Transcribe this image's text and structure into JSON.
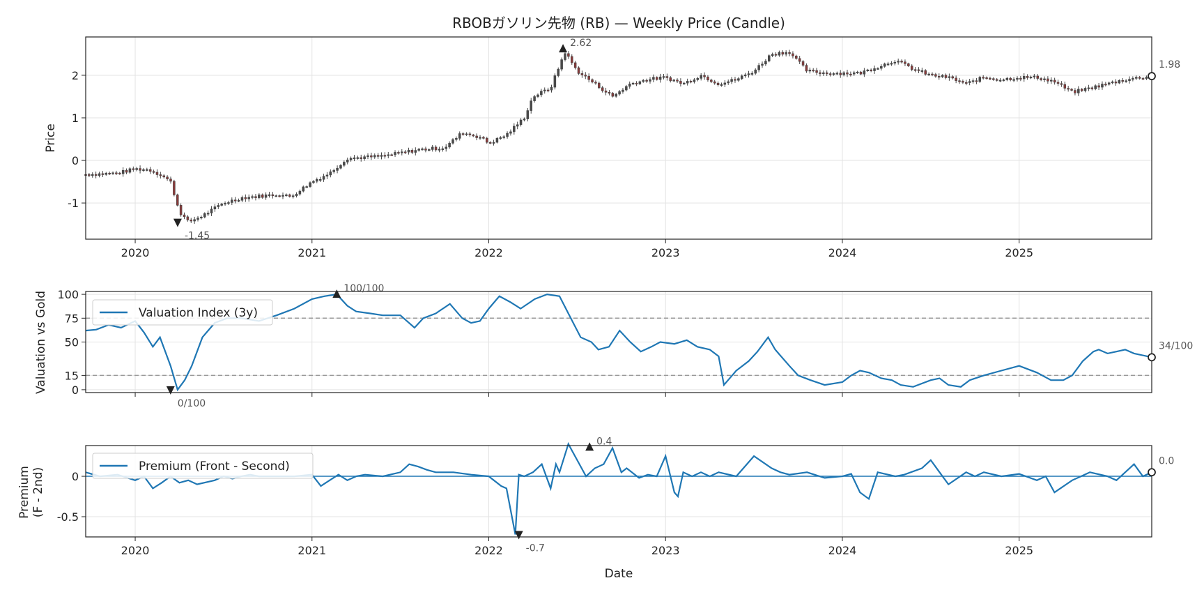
{
  "chart_data": [
    {
      "type": "candlestick",
      "title": "RBOBガソリン先物 (RB) — Weekly Price (Candle)",
      "ylabel": "Price",
      "xlabel": "",
      "xlim": [
        2019.72,
        2025.75
      ],
      "ylim": [
        -1.85,
        2.9
      ],
      "yticks": [
        -1,
        0,
        1,
        2
      ],
      "xticks": [
        "2020",
        "2021",
        "2022",
        "2023",
        "2024",
        "2025"
      ],
      "grid": true,
      "anchors": [
        [
          2019.72,
          -0.33
        ],
        [
          2019.9,
          -0.3
        ],
        [
          2020.0,
          -0.2
        ],
        [
          2020.08,
          -0.22
        ],
        [
          2020.15,
          -0.35
        ],
        [
          2020.2,
          -0.5
        ],
        [
          2020.25,
          -1.2
        ],
        [
          2020.3,
          -1.45
        ],
        [
          2020.38,
          -1.3
        ],
        [
          2020.5,
          -1.0
        ],
        [
          2020.6,
          -0.88
        ],
        [
          2020.8,
          -0.8
        ],
        [
          2020.88,
          -0.85
        ],
        [
          2021.0,
          -0.5
        ],
        [
          2021.1,
          -0.3
        ],
        [
          2021.2,
          0.05
        ],
        [
          2021.4,
          0.1
        ],
        [
          2021.6,
          0.25
        ],
        [
          2021.75,
          0.3
        ],
        [
          2021.85,
          0.65
        ],
        [
          2021.95,
          0.55
        ],
        [
          2022.0,
          0.4
        ],
        [
          2022.1,
          0.6
        ],
        [
          2022.2,
          1.0
        ],
        [
          2022.25,
          1.5
        ],
        [
          2022.35,
          1.7
        ],
        [
          2022.43,
          2.55
        ],
        [
          2022.5,
          2.1
        ],
        [
          2022.6,
          1.8
        ],
        [
          2022.7,
          1.5
        ],
        [
          2022.8,
          1.8
        ],
        [
          2022.9,
          1.9
        ],
        [
          2023.0,
          1.95
        ],
        [
          2023.1,
          1.8
        ],
        [
          2023.2,
          2.0
        ],
        [
          2023.3,
          1.8
        ],
        [
          2023.4,
          1.9
        ],
        [
          2023.5,
          2.1
        ],
        [
          2023.6,
          2.5
        ],
        [
          2023.7,
          2.55
        ],
        [
          2023.8,
          2.1
        ],
        [
          2023.9,
          2.05
        ],
        [
          2024.0,
          2.05
        ],
        [
          2024.1,
          2.05
        ],
        [
          2024.2,
          2.2
        ],
        [
          2024.3,
          2.35
        ],
        [
          2024.4,
          2.15
        ],
        [
          2024.5,
          2.0
        ],
        [
          2024.6,
          1.95
        ],
        [
          2024.7,
          1.8
        ],
        [
          2024.8,
          1.95
        ],
        [
          2024.9,
          1.9
        ],
        [
          2025.0,
          1.95
        ],
        [
          2025.1,
          1.95
        ],
        [
          2025.2,
          1.85
        ],
        [
          2025.3,
          1.6
        ],
        [
          2025.4,
          1.7
        ],
        [
          2025.5,
          1.8
        ],
        [
          2025.6,
          1.9
        ],
        [
          2025.75,
          1.98
        ]
      ],
      "candle_width_weeks": 1,
      "annotations": [
        {
          "label": "2.62",
          "x": 2022.42,
          "y": 2.62,
          "marker": "up"
        },
        {
          "label": "-1.45",
          "x": 2020.24,
          "y": -1.45,
          "marker": "down"
        },
        {
          "label": "1.98",
          "x": 2025.75,
          "y": 1.98,
          "marker": "circle"
        }
      ]
    },
    {
      "type": "line",
      "ylabel": "Valuation vs Gold",
      "xlabel": "",
      "xlim": [
        2019.72,
        2025.75
      ],
      "ylim": [
        -3,
        103
      ],
      "yticks": [
        0,
        15,
        50,
        75,
        100
      ],
      "hlines": [
        15,
        75
      ],
      "legend": "Valuation Index (3y)",
      "legend_position": "upper-left",
      "series": [
        {
          "name": "Valuation Index (3y)",
          "x": [
            2019.72,
            2019.78,
            2019.85,
            2019.92,
            2020.0,
            2020.05,
            2020.1,
            2020.14,
            2020.2,
            2020.24,
            2020.28,
            2020.32,
            2020.38,
            2020.45,
            2020.52,
            2020.6,
            2020.7,
            2020.8,
            2020.9,
            2021.0,
            2021.07,
            2021.14,
            2021.2,
            2021.25,
            2021.33,
            2021.4,
            2021.5,
            2021.58,
            2021.63,
            2021.7,
            2021.78,
            2021.85,
            2021.9,
            2021.95,
            2022.0,
            2022.06,
            2022.12,
            2022.18,
            2022.26,
            2022.33,
            2022.4,
            2022.45,
            2022.52,
            2022.58,
            2022.62,
            2022.68,
            2022.74,
            2022.8,
            2022.86,
            2022.92,
            2022.97,
            2023.05,
            2023.12,
            2023.18,
            2023.25,
            2023.3,
            2023.33,
            2023.4,
            2023.47,
            2023.52,
            2023.58,
            2023.62,
            2023.7,
            2023.75,
            2023.82,
            2023.9,
            2024.0,
            2024.05,
            2024.1,
            2024.15,
            2024.22,
            2024.28,
            2024.33,
            2024.4,
            2024.5,
            2024.55,
            2024.6,
            2024.67,
            2024.72,
            2024.8,
            2024.9,
            2025.0,
            2025.1,
            2025.18,
            2025.25,
            2025.3,
            2025.36,
            2025.42,
            2025.45,
            2025.5,
            2025.55,
            2025.6,
            2025.65,
            2025.75
          ],
          "y": [
            62,
            63,
            68,
            65,
            72,
            60,
            45,
            55,
            25,
            0,
            10,
            25,
            55,
            70,
            75,
            75,
            72,
            78,
            85,
            95,
            98,
            100,
            88,
            82,
            80,
            78,
            78,
            65,
            75,
            80,
            90,
            75,
            70,
            72,
            85,
            98,
            92,
            85,
            95,
            100,
            98,
            80,
            55,
            50,
            42,
            45,
            62,
            50,
            40,
            45,
            50,
            48,
            52,
            45,
            42,
            35,
            5,
            20,
            30,
            40,
            55,
            42,
            25,
            15,
            10,
            5,
            8,
            15,
            20,
            18,
            12,
            10,
            5,
            3,
            10,
            12,
            5,
            3,
            10,
            15,
            20,
            25,
            18,
            10,
            10,
            15,
            30,
            40,
            42,
            38,
            40,
            42,
            38,
            34
          ]
        }
      ],
      "annotations": [
        {
          "label": "100/100",
          "x": 2021.14,
          "y": 100,
          "marker": "up"
        },
        {
          "label": "0/100",
          "x": 2020.2,
          "y": 0,
          "marker": "down"
        },
        {
          "label": "34/100",
          "x": 2025.75,
          "y": 34,
          "marker": "circle"
        }
      ]
    },
    {
      "type": "line",
      "ylabel": "Premium",
      "ylabel2": "(F - 2nd)",
      "xlabel": "Date",
      "xlim": [
        2019.72,
        2025.75
      ],
      "ylim": [
        -0.75,
        0.38
      ],
      "yticks": [
        -0.5,
        0.0
      ],
      "hlines": [
        0.0
      ],
      "legend": "Premium (Front - Second)",
      "legend_position": "upper-left",
      "xticks": [
        "2020",
        "2021",
        "2022",
        "2023",
        "2024",
        "2025"
      ],
      "series": [
        {
          "name": "Premium (Front - Second)",
          "x": [
            2019.72,
            2019.8,
            2019.9,
            2020.0,
            2020.05,
            2020.1,
            2020.15,
            2020.2,
            2020.25,
            2020.3,
            2020.35,
            2020.45,
            2020.5,
            2020.55,
            2020.6,
            2020.65,
            2020.7,
            2020.8,
            2020.9,
            2021.0,
            2021.05,
            2021.1,
            2021.15,
            2021.2,
            2021.25,
            2021.3,
            2021.4,
            2021.5,
            2021.55,
            2021.6,
            2021.65,
            2021.7,
            2021.8,
            2021.9,
            2022.0,
            2022.07,
            2022.1,
            2022.15,
            2022.17,
            2022.2,
            2022.25,
            2022.3,
            2022.35,
            2022.38,
            2022.4,
            2022.45,
            2022.5,
            2022.55,
            2022.6,
            2022.65,
            2022.7,
            2022.75,
            2022.78,
            2022.85,
            2022.9,
            2022.95,
            2023.0,
            2023.05,
            2023.07,
            2023.1,
            2023.15,
            2023.2,
            2023.25,
            2023.3,
            2023.4,
            2023.5,
            2023.6,
            2023.65,
            2023.7,
            2023.8,
            2023.9,
            2024.0,
            2024.05,
            2024.1,
            2024.15,
            2024.2,
            2024.3,
            2024.35,
            2024.45,
            2024.5,
            2024.55,
            2024.6,
            2024.7,
            2024.75,
            2024.8,
            2024.9,
            2025.0,
            2025.1,
            2025.15,
            2025.2,
            2025.3,
            2025.35,
            2025.4,
            2025.5,
            2025.55,
            2025.6,
            2025.65,
            2025.7,
            2025.75
          ],
          "y": [
            0.05,
            0.0,
            0.02,
            -0.05,
            0.0,
            -0.15,
            -0.08,
            0.0,
            -0.08,
            -0.05,
            -0.1,
            -0.05,
            0.0,
            -0.03,
            0.0,
            0.02,
            0.0,
            0.0,
            0.0,
            0.02,
            -0.12,
            -0.05,
            0.02,
            -0.05,
            0.0,
            0.02,
            0.0,
            0.05,
            0.15,
            0.12,
            0.08,
            0.05,
            0.05,
            0.02,
            0.0,
            -0.12,
            -0.15,
            -0.72,
            0.02,
            0.0,
            0.05,
            0.15,
            -0.15,
            0.15,
            0.05,
            0.4,
            0.2,
            0.0,
            0.1,
            0.15,
            0.35,
            0.05,
            0.1,
            -0.02,
            0.02,
            0.0,
            0.25,
            -0.2,
            -0.25,
            0.05,
            0.0,
            0.05,
            0.0,
            0.05,
            0.0,
            0.25,
            0.1,
            0.05,
            0.02,
            0.05,
            -0.02,
            0.0,
            0.03,
            -0.2,
            -0.28,
            0.05,
            0.0,
            0.02,
            0.1,
            0.2,
            0.05,
            -0.1,
            0.05,
            0.0,
            0.05,
            0.0,
            0.03,
            -0.05,
            0.0,
            -0.2,
            -0.05,
            0.0,
            0.05,
            0.0,
            -0.05,
            0.05,
            0.15,
            0.0,
            0.05
          ]
        }
      ],
      "annotations": [
        {
          "label": "0.4",
          "x": 2022.57,
          "y": 0.36,
          "marker": "up"
        },
        {
          "label": "-0.7",
          "x": 2022.17,
          "y": -0.72,
          "marker": "down"
        },
        {
          "label": "0.0",
          "x": 2025.75,
          "y": 0.05,
          "marker": "circle"
        }
      ]
    }
  ]
}
